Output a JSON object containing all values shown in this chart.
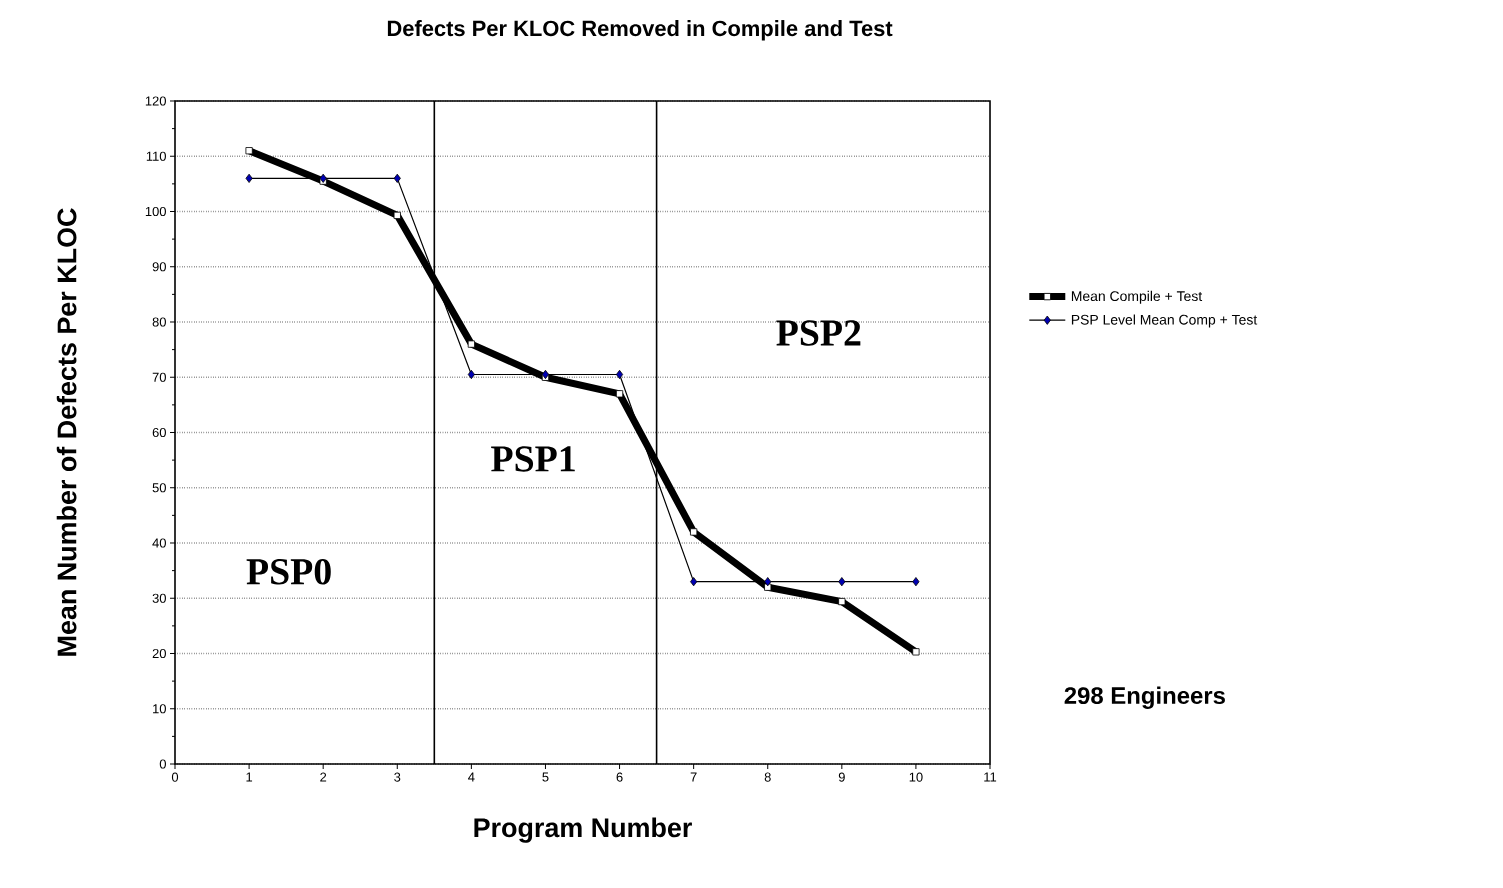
{
  "chart_data": {
    "type": "line",
    "title": "Defects Per KLOC Removed in Compile and Test",
    "xlabel": "Program Number",
    "ylabel": "Mean Number of Defects Per KLOC",
    "x": [
      1,
      2,
      3,
      4,
      5,
      6,
      7,
      8,
      9,
      10
    ],
    "series": [
      {
        "name": "Mean Compile + Test",
        "color": "#000000",
        "marker": "square",
        "line_style": "solid",
        "values": [
          111,
          105.5,
          99.3,
          76,
          70,
          67,
          42,
          32,
          29.4,
          20.3
        ]
      },
      {
        "name": "PSP Level Mean Comp + Test",
        "color": "#000000",
        "marker": "diamond",
        "line_style": "solid",
        "values": [
          106,
          106,
          106,
          70.5,
          70.5,
          70.5,
          33,
          33,
          33,
          33
        ]
      }
    ],
    "xlim": [
      0,
      11
    ],
    "xticks": [
      0,
      1,
      2,
      3,
      4,
      5,
      6,
      7,
      8,
      9,
      10,
      11
    ],
    "ylim": [
      0,
      120
    ],
    "yticks": [
      0,
      10,
      20,
      30,
      40,
      50,
      60,
      70,
      80,
      90,
      100,
      110,
      120
    ],
    "grid": "y",
    "legend": "right",
    "ref_lines": [
      {
        "axis": "x",
        "value": 3.5
      },
      {
        "axis": "x",
        "value": 6.5
      }
    ],
    "annotations": [
      "PSP0",
      "PSP1",
      "PSP2",
      "298 Engineers"
    ]
  }
}
